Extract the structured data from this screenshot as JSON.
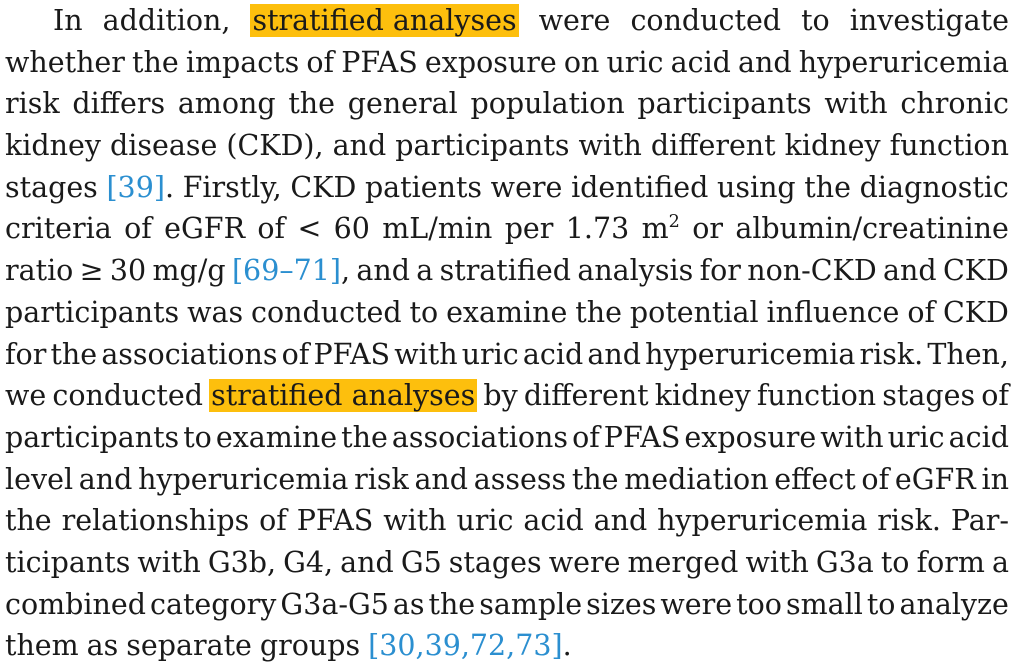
{
  "paragraph": {
    "lines": [
      [
        "In",
        "addition,",
        {
          "hl": "stratified analyses"
        },
        "were",
        "conducted",
        "to",
        "investigate"
      ],
      [
        "whether",
        "the",
        "impacts",
        "of",
        "PFAS",
        "exposure",
        "on",
        "uric",
        "acid",
        "and",
        "hyperuricemia"
      ],
      [
        "risk",
        "differs",
        "among",
        "the",
        "general",
        "population",
        "participants",
        "with",
        "chronic"
      ],
      [
        "kidney",
        "disease",
        "(CKD),",
        "and",
        "participants",
        "with",
        "different",
        "kidney",
        "function"
      ],
      [
        "stages",
        {
          "cite": "[39]",
          "tail": "."
        },
        "Firstly,",
        "CKD",
        "patients",
        "were",
        "identified",
        "using",
        "the",
        "diagnostic"
      ],
      [
        "criteria",
        "of",
        "eGFR",
        "of",
        "<",
        "60",
        "mL/min",
        "per",
        "1.73",
        {
          "sup_base": "m",
          "sup": "2"
        },
        "or",
        "albumin/creatinine"
      ],
      [
        "ratio",
        "≥",
        "30",
        "mg/g",
        {
          "cite": "[69–71]",
          "tail": ","
        },
        "and",
        "a",
        "stratified",
        "analysis",
        "for",
        "non-CKD",
        "and",
        "CKD"
      ],
      [
        "participants",
        "was",
        "conducted",
        "to",
        "examine",
        "the",
        "potential",
        "influence",
        "of",
        "CKD"
      ],
      [
        "for",
        "the",
        "associations",
        "of",
        "PFAS",
        "with",
        "uric",
        "acid",
        "and",
        "hyperuricemia",
        "risk.",
        "Then,"
      ],
      [
        "we",
        "conducted",
        {
          "hl": "stratified analyses"
        },
        "by",
        "different",
        "kidney",
        "function",
        "stages",
        "of"
      ],
      [
        "participants",
        "to",
        "examine",
        "the",
        "associations",
        "of",
        "PFAS",
        "exposure",
        "with",
        "uric",
        "acid"
      ],
      [
        "level",
        "and",
        "hyperuricemia",
        "risk",
        "and",
        "assess",
        "the",
        "mediation",
        "effect",
        "of",
        "eGFR",
        "in"
      ],
      [
        "the",
        "relationships",
        "of",
        "PFAS",
        "with",
        "uric",
        "acid",
        "and",
        "hyperuricemia",
        "risk.",
        "Par-"
      ],
      [
        "ticipants",
        "with",
        "G3b,",
        "G4,",
        "and",
        "G5",
        "stages",
        "were",
        "merged",
        "with",
        "G3a",
        "to",
        "form",
        "a"
      ],
      [
        "combined",
        "category",
        "G3a-G5",
        "as",
        "the",
        "sample",
        "sizes",
        "were",
        "too",
        "small",
        "to",
        "analyze"
      ],
      [
        "them",
        "as",
        "separate",
        "groups",
        {
          "cite": "[30,39,72,73]",
          "tail": "."
        }
      ]
    ]
  },
  "colors": {
    "highlight": "#fdbf0d",
    "citation": "#2b8fd0",
    "text": "#1a1a1a"
  }
}
